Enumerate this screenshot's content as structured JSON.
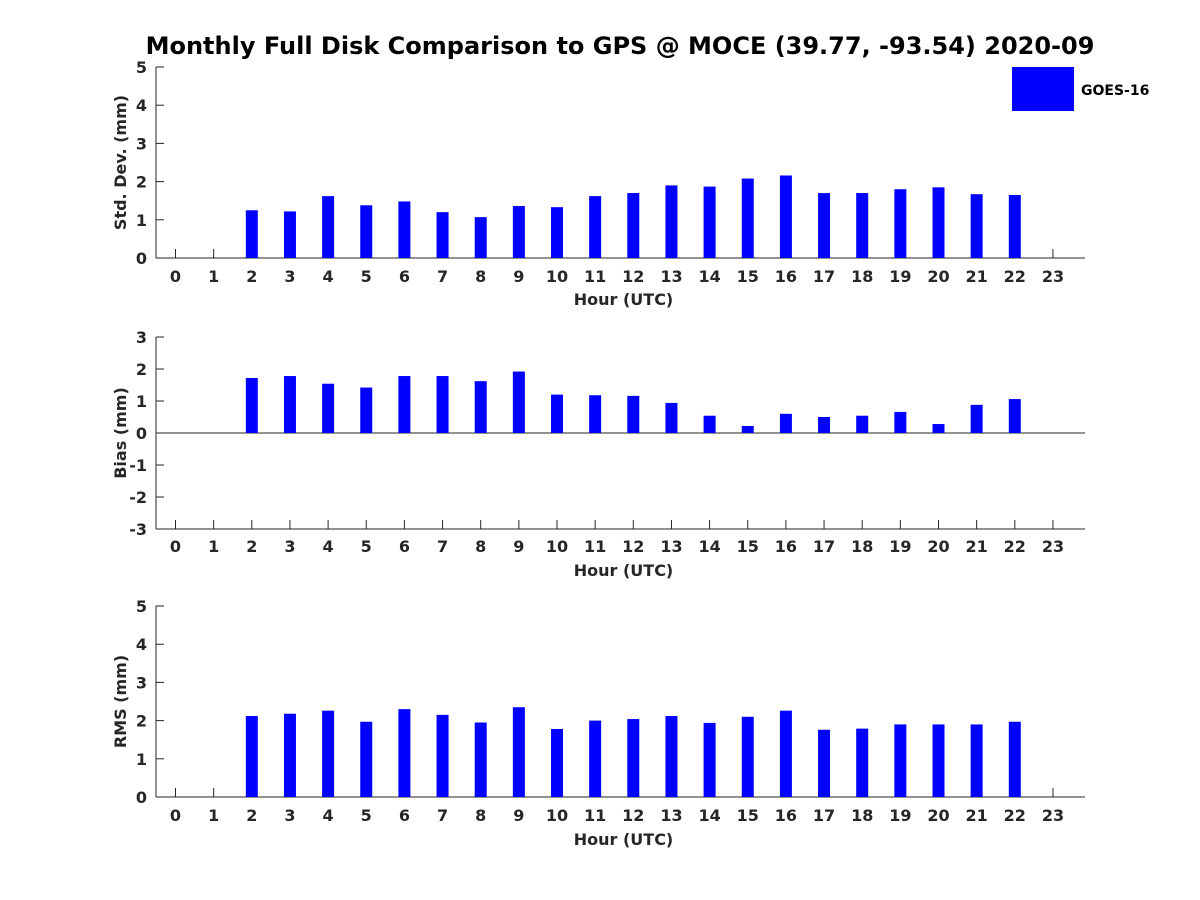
{
  "title": "Monthly Full Disk Comparison to GPS @ MOCE (39.77, -93.54) 2020-09",
  "legend": {
    "label": "GOES-16",
    "placement": "top-right"
  },
  "colors": {
    "bar": "#0000ff",
    "axis": "#262626",
    "background": "#ffffff"
  },
  "chart_data": [
    {
      "type": "bar",
      "series": [
        {
          "name": "GOES-16",
          "values": [
            null,
            null,
            1.25,
            1.22,
            1.62,
            1.38,
            1.48,
            1.2,
            1.07,
            1.36,
            1.33,
            1.62,
            1.7,
            1.9,
            1.87,
            2.08,
            2.16,
            1.7,
            1.7,
            1.8,
            1.85,
            1.67,
            1.65,
            null
          ]
        }
      ],
      "categories": [
        "0",
        "1",
        "2",
        "3",
        "4",
        "5",
        "6",
        "7",
        "8",
        "9",
        "10",
        "11",
        "12",
        "13",
        "14",
        "15",
        "16",
        "17",
        "18",
        "19",
        "20",
        "21",
        "22",
        "23"
      ],
      "xlabel": "Hour (UTC)",
      "ylabel": "Std. Dev. (mm)",
      "ylim": [
        0,
        5
      ],
      "yticks": [
        "0",
        "1",
        "2",
        "3",
        "4",
        "5"
      ],
      "grid": false
    },
    {
      "type": "bar",
      "series": [
        {
          "name": "GOES-16",
          "values": [
            null,
            null,
            1.72,
            1.78,
            1.54,
            1.42,
            1.78,
            1.78,
            1.62,
            1.92,
            1.2,
            1.18,
            1.16,
            0.94,
            0.54,
            0.22,
            0.6,
            0.5,
            0.54,
            0.66,
            0.28,
            0.88,
            1.06,
            null
          ]
        }
      ],
      "categories": [
        "0",
        "1",
        "2",
        "3",
        "4",
        "5",
        "6",
        "7",
        "8",
        "9",
        "10",
        "11",
        "12",
        "13",
        "14",
        "15",
        "16",
        "17",
        "18",
        "19",
        "20",
        "21",
        "22",
        "23"
      ],
      "xlabel": "Hour (UTC)",
      "ylabel": "Bias (mm)",
      "ylim": [
        -3,
        3
      ],
      "yticks": [
        "-3",
        "-2",
        "-1",
        "0",
        "1",
        "2",
        "3"
      ],
      "grid": false
    },
    {
      "type": "bar",
      "series": [
        {
          "name": "GOES-16",
          "values": [
            null,
            null,
            2.12,
            2.18,
            2.26,
            1.97,
            2.3,
            2.15,
            1.95,
            2.35,
            1.78,
            2.0,
            2.04,
            2.12,
            1.94,
            2.1,
            2.26,
            1.76,
            1.79,
            1.9,
            1.9,
            1.9,
            1.97,
            null
          ]
        }
      ],
      "categories": [
        "0",
        "1",
        "2",
        "3",
        "4",
        "5",
        "6",
        "7",
        "8",
        "9",
        "10",
        "11",
        "12",
        "13",
        "14",
        "15",
        "16",
        "17",
        "18",
        "19",
        "20",
        "21",
        "22",
        "23"
      ],
      "xlabel": "Hour (UTC)",
      "ylabel": "RMS (mm)",
      "ylim": [
        0,
        5
      ],
      "yticks": [
        "0",
        "1",
        "2",
        "3",
        "4",
        "5"
      ],
      "grid": false
    }
  ]
}
